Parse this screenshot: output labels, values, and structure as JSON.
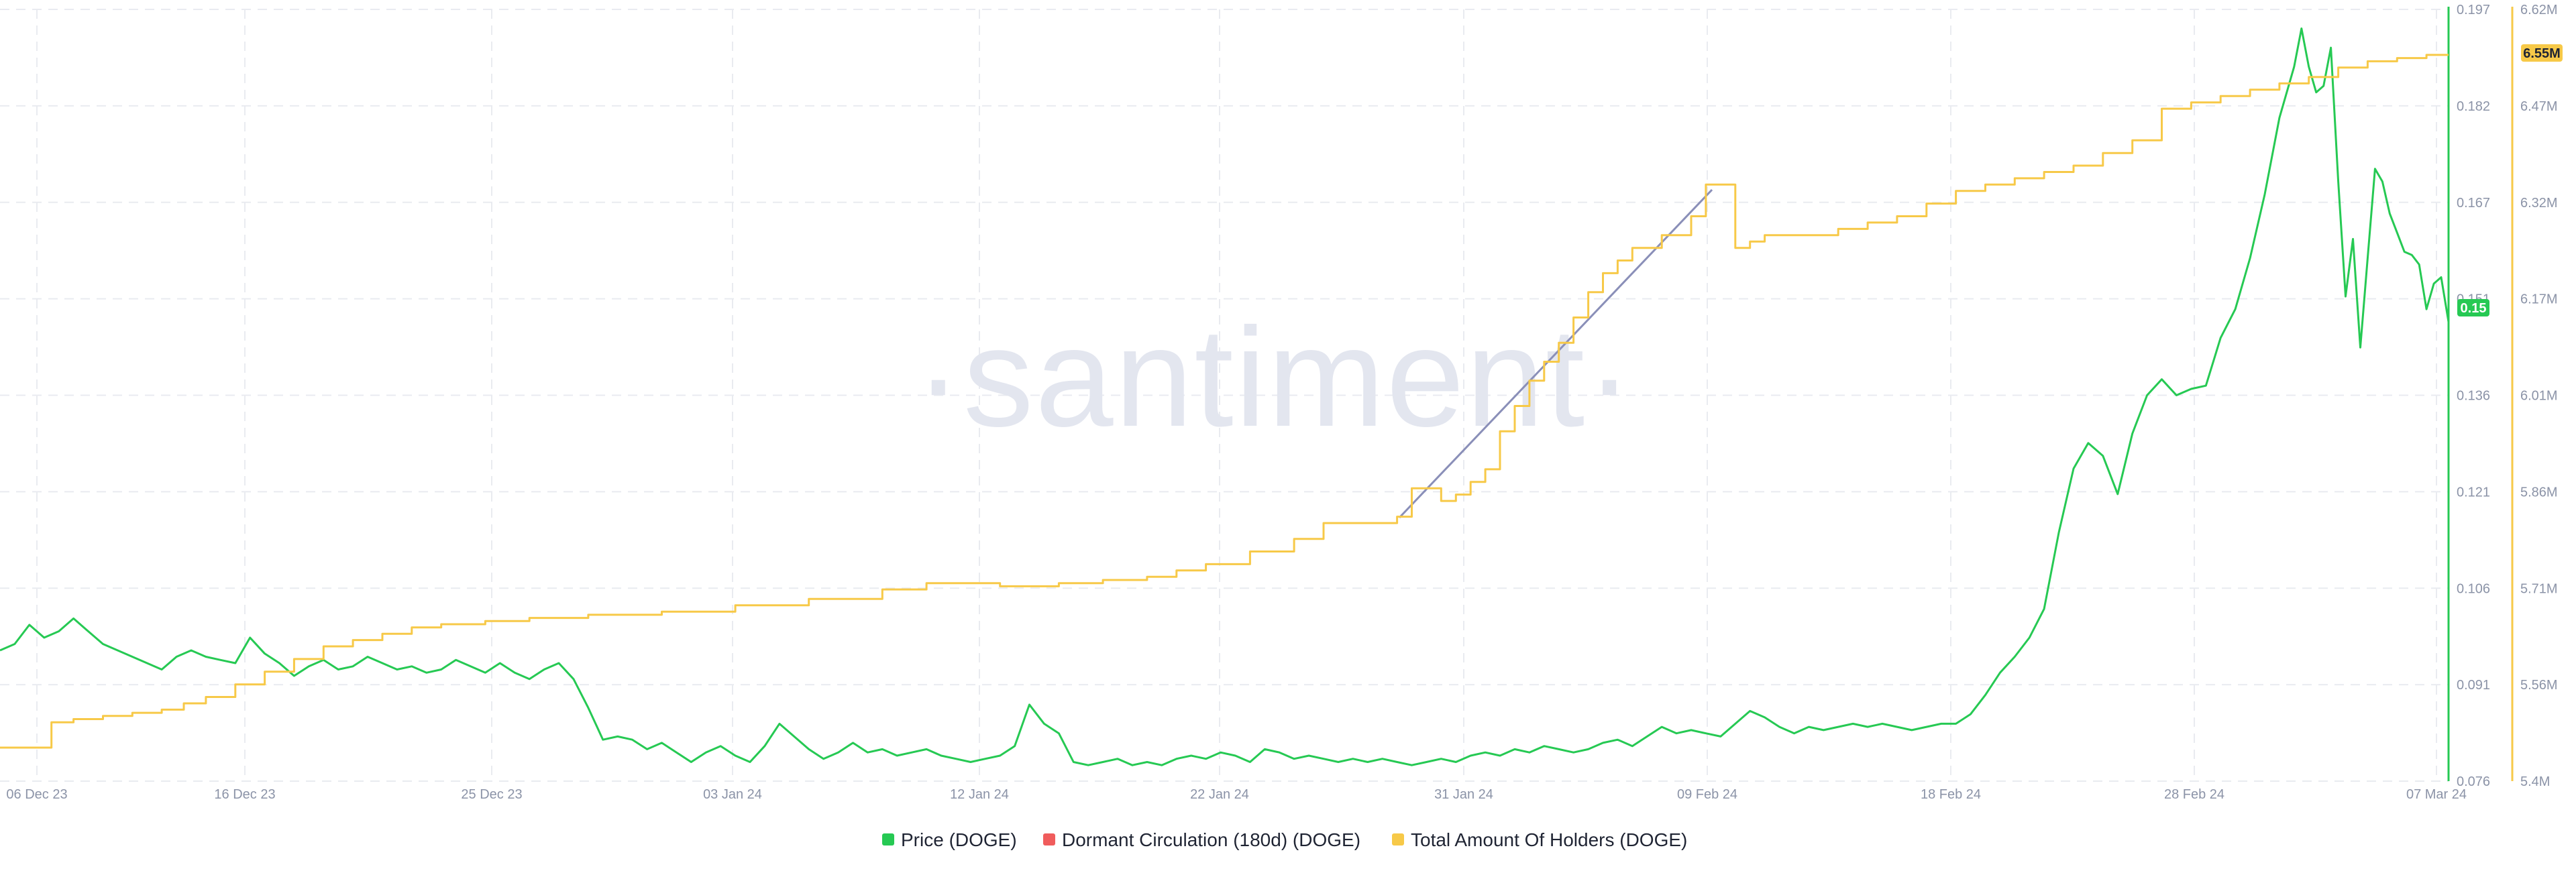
{
  "chart_data": {
    "type": "line",
    "watermark": "·santiment·",
    "x_labels": [
      "06 Dec 23",
      "16 Dec 23",
      "25 Dec 23",
      "03 Jan 24",
      "12 Jan 24",
      "22 Jan 24",
      "31 Jan 24",
      "09 Feb 24",
      "18 Feb 24",
      "28 Feb 24",
      "07 Mar 24"
    ],
    "price_axis": {
      "ticks": [
        "0.197",
        "0.182",
        "0.167",
        "0.151",
        "0.136",
        "0.121",
        "0.106",
        "0.091",
        "0.076"
      ],
      "ylim": [
        0.076,
        0.197
      ]
    },
    "holders_axis": {
      "ticks": [
        "6.62M",
        "6.47M",
        "6.32M",
        "6.17M",
        "6.01M",
        "5.86M",
        "5.71M",
        "5.56M",
        "5.4M"
      ],
      "ylim": [
        5.4,
        6.62
      ]
    },
    "badges": {
      "price": "0.15",
      "holders": "6.55M"
    },
    "series": [
      {
        "name": "Price (DOGE)",
        "color": "#26c953",
        "axis": "price",
        "points": [
          [
            0,
            0.0965
          ],
          [
            2,
            0.0975
          ],
          [
            4,
            0.1005
          ],
          [
            6,
            0.0985
          ],
          [
            8,
            0.0995
          ],
          [
            10,
            0.1015
          ],
          [
            12,
            0.0995
          ],
          [
            14,
            0.0975
          ],
          [
            16,
            0.0965
          ],
          [
            18,
            0.0955
          ],
          [
            20,
            0.0945
          ],
          [
            22,
            0.0935
          ],
          [
            24,
            0.0955
          ],
          [
            26,
            0.0965
          ],
          [
            28,
            0.0955
          ],
          [
            30,
            0.095
          ],
          [
            32,
            0.0945
          ],
          [
            34,
            0.0985
          ],
          [
            36,
            0.096
          ],
          [
            38,
            0.0945
          ],
          [
            40,
            0.0925
          ],
          [
            42,
            0.094
          ],
          [
            44,
            0.095
          ],
          [
            46,
            0.0935
          ],
          [
            48,
            0.094
          ],
          [
            50,
            0.0955
          ],
          [
            52,
            0.0945
          ],
          [
            54,
            0.0935
          ],
          [
            56,
            0.094
          ],
          [
            58,
            0.093
          ],
          [
            60,
            0.0935
          ],
          [
            62,
            0.095
          ],
          [
            64,
            0.094
          ],
          [
            66,
            0.093
          ],
          [
            68,
            0.0945
          ],
          [
            70,
            0.093
          ],
          [
            72,
            0.092
          ],
          [
            74,
            0.0935
          ],
          [
            76,
            0.0945
          ],
          [
            78,
            0.092
          ],
          [
            80,
            0.0875
          ],
          [
            82,
            0.0825
          ],
          [
            84,
            0.083
          ],
          [
            86,
            0.0825
          ],
          [
            88,
            0.081
          ],
          [
            90,
            0.082
          ],
          [
            92,
            0.0805
          ],
          [
            94,
            0.079
          ],
          [
            96,
            0.0805
          ],
          [
            98,
            0.0815
          ],
          [
            100,
            0.08
          ],
          [
            102,
            0.079
          ],
          [
            104,
            0.0815
          ],
          [
            106,
            0.085
          ],
          [
            108,
            0.083
          ],
          [
            110,
            0.081
          ],
          [
            112,
            0.0795
          ],
          [
            114,
            0.0805
          ],
          [
            116,
            0.082
          ],
          [
            118,
            0.0805
          ],
          [
            120,
            0.081
          ],
          [
            122,
            0.08
          ],
          [
            124,
            0.0805
          ],
          [
            126,
            0.081
          ],
          [
            128,
            0.08
          ],
          [
            130,
            0.0795
          ],
          [
            132,
            0.079
          ],
          [
            134,
            0.0795
          ],
          [
            136,
            0.08
          ],
          [
            138,
            0.0815
          ],
          [
            140,
            0.088
          ],
          [
            142,
            0.085
          ],
          [
            144,
            0.0835
          ],
          [
            146,
            0.079
          ],
          [
            148,
            0.0785
          ],
          [
            150,
            0.079
          ],
          [
            152,
            0.0795
          ],
          [
            154,
            0.0785
          ],
          [
            156,
            0.079
          ],
          [
            158,
            0.0785
          ],
          [
            160,
            0.0795
          ],
          [
            162,
            0.08
          ],
          [
            164,
            0.0795
          ],
          [
            166,
            0.0805
          ],
          [
            168,
            0.08
          ],
          [
            170,
            0.079
          ],
          [
            172,
            0.081
          ],
          [
            174,
            0.0805
          ],
          [
            176,
            0.0795
          ],
          [
            178,
            0.08
          ],
          [
            180,
            0.0795
          ],
          [
            182,
            0.079
          ],
          [
            184,
            0.0795
          ],
          [
            186,
            0.079
          ],
          [
            188,
            0.0795
          ],
          [
            190,
            0.079
          ],
          [
            192,
            0.0785
          ],
          [
            194,
            0.079
          ],
          [
            196,
            0.0795
          ],
          [
            198,
            0.079
          ],
          [
            200,
            0.08
          ],
          [
            202,
            0.0805
          ],
          [
            204,
            0.08
          ],
          [
            206,
            0.081
          ],
          [
            208,
            0.0805
          ],
          [
            210,
            0.0815
          ],
          [
            212,
            0.081
          ],
          [
            214,
            0.0805
          ],
          [
            216,
            0.081
          ],
          [
            218,
            0.082
          ],
          [
            220,
            0.0825
          ],
          [
            222,
            0.0815
          ],
          [
            224,
            0.083
          ],
          [
            226,
            0.0845
          ],
          [
            228,
            0.0835
          ],
          [
            230,
            0.084
          ],
          [
            232,
            0.0835
          ],
          [
            234,
            0.083
          ],
          [
            236,
            0.085
          ],
          [
            238,
            0.087
          ],
          [
            240,
            0.086
          ],
          [
            242,
            0.0845
          ],
          [
            244,
            0.0835
          ],
          [
            246,
            0.0845
          ],
          [
            248,
            0.084
          ],
          [
            250,
            0.0845
          ],
          [
            252,
            0.085
          ],
          [
            254,
            0.0845
          ],
          [
            256,
            0.085
          ],
          [
            258,
            0.0845
          ],
          [
            260,
            0.084
          ],
          [
            262,
            0.0845
          ],
          [
            264,
            0.085
          ],
          [
            266,
            0.085
          ],
          [
            268,
            0.0865
          ],
          [
            270,
            0.0895
          ],
          [
            272,
            0.093
          ],
          [
            274,
            0.0955
          ],
          [
            276,
            0.0985
          ],
          [
            278,
            0.103
          ],
          [
            280,
            0.115
          ],
          [
            282,
            0.125
          ],
          [
            284,
            0.129
          ],
          [
            286,
            0.127
          ],
          [
            288,
            0.121
          ],
          [
            290,
            0.1305
          ],
          [
            292,
            0.1365
          ],
          [
            294,
            0.139
          ],
          [
            296,
            0.1365
          ],
          [
            298,
            0.1375
          ],
          [
            300,
            0.138
          ],
          [
            302,
            0.1455
          ],
          [
            304,
            0.15
          ],
          [
            306,
            0.158
          ],
          [
            308,
            0.168
          ],
          [
            310,
            0.18
          ],
          [
            312,
            0.188
          ],
          [
            313,
            0.194
          ],
          [
            314,
            0.188
          ],
          [
            315,
            0.184
          ],
          [
            316,
            0.185
          ],
          [
            317,
            0.191
          ],
          [
            318,
            0.17
          ],
          [
            319,
            0.152
          ],
          [
            320,
            0.161
          ],
          [
            321,
            0.144
          ],
          [
            322,
            0.158
          ],
          [
            323,
            0.172
          ],
          [
            324,
            0.17
          ],
          [
            325,
            0.165
          ],
          [
            326,
            0.162
          ],
          [
            327,
            0.159
          ],
          [
            328,
            0.1585
          ],
          [
            329,
            0.157
          ],
          [
            330,
            0.15
          ],
          [
            331,
            0.154
          ],
          [
            332,
            0.155
          ],
          [
            333,
            0.148
          ]
        ]
      },
      {
        "name": "Dormant Circulation (180d) (DOGE)",
        "color": "#f05c5c",
        "axis": "price",
        "points": []
      },
      {
        "name": "Total Amount Of Holders (DOGE)",
        "color": "#f7c948",
        "axis": "holders",
        "points": [
          [
            0,
            5.453
          ],
          [
            6,
            5.453
          ],
          [
            7,
            5.493
          ],
          [
            10,
            5.498
          ],
          [
            14,
            5.503
          ],
          [
            18,
            5.508
          ],
          [
            22,
            5.513
          ],
          [
            25,
            5.523
          ],
          [
            28,
            5.533
          ],
          [
            32,
            5.553
          ],
          [
            36,
            5.573
          ],
          [
            40,
            5.593
          ],
          [
            44,
            5.613
          ],
          [
            48,
            5.623
          ],
          [
            52,
            5.633
          ],
          [
            56,
            5.643
          ],
          [
            60,
            5.648
          ],
          [
            66,
            5.653
          ],
          [
            72,
            5.658
          ],
          [
            80,
            5.663
          ],
          [
            90,
            5.668
          ],
          [
            100,
            5.678
          ],
          [
            110,
            5.688
          ],
          [
            120,
            5.703
          ],
          [
            126,
            5.713
          ],
          [
            136,
            5.708
          ],
          [
            144,
            5.713
          ],
          [
            150,
            5.718
          ],
          [
            156,
            5.723
          ],
          [
            160,
            5.733
          ],
          [
            164,
            5.743
          ],
          [
            170,
            5.763
          ],
          [
            176,
            5.783
          ],
          [
            180,
            5.808
          ],
          [
            190,
            5.818
          ],
          [
            192,
            5.863
          ],
          [
            196,
            5.843
          ],
          [
            198,
            5.853
          ],
          [
            200,
            5.873
          ],
          [
            202,
            5.893
          ],
          [
            204,
            5.953
          ],
          [
            206,
            5.993
          ],
          [
            208,
            6.033
          ],
          [
            210,
            6.063
          ],
          [
            212,
            6.093
          ],
          [
            214,
            6.133
          ],
          [
            216,
            6.173
          ],
          [
            218,
            6.203
          ],
          [
            220,
            6.223
          ],
          [
            222,
            6.243
          ],
          [
            226,
            6.263
          ],
          [
            230,
            6.293
          ],
          [
            232,
            6.343
          ],
          [
            234,
            6.343
          ],
          [
            236,
            6.243
          ],
          [
            238,
            6.253
          ],
          [
            240,
            6.263
          ],
          [
            244,
            6.263
          ],
          [
            250,
            6.273
          ],
          [
            254,
            6.283
          ],
          [
            258,
            6.293
          ],
          [
            262,
            6.313
          ],
          [
            266,
            6.333
          ],
          [
            270,
            6.343
          ],
          [
            274,
            6.353
          ],
          [
            278,
            6.363
          ],
          [
            282,
            6.373
          ],
          [
            286,
            6.393
          ],
          [
            290,
            6.413
          ],
          [
            294,
            6.463
          ],
          [
            298,
            6.473
          ],
          [
            302,
            6.483
          ],
          [
            306,
            6.493
          ],
          [
            310,
            6.503
          ],
          [
            314,
            6.513
          ],
          [
            318,
            6.528
          ],
          [
            322,
            6.538
          ],
          [
            326,
            6.543
          ],
          [
            330,
            6.548
          ],
          [
            333,
            6.548
          ]
        ]
      }
    ],
    "legend": [
      {
        "label": "Price (DOGE)",
        "color": "#26c953"
      },
      {
        "label": "Dormant Circulation (180d) (DOGE)",
        "color": "#f05c5c"
      },
      {
        "label": "Total Amount Of Holders (DOGE)",
        "color": "#f7c948"
      }
    ]
  }
}
